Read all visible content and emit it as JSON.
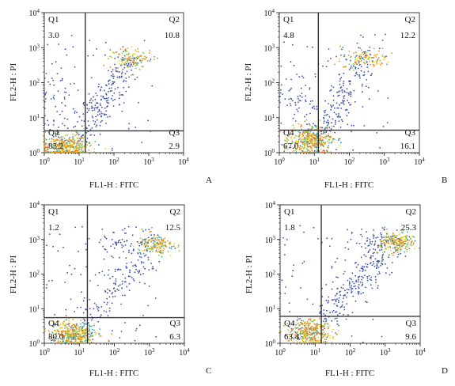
{
  "chart_data": [
    {
      "type": "scatter",
      "panel": "A",
      "xlabel": "FL1-H : FITC",
      "ylabel": "FL2-H : PI",
      "xscale": "log",
      "yscale": "log",
      "xlim": [
        1,
        10000
      ],
      "ylim": [
        1,
        10000
      ],
      "x_ticks": [
        "10^0",
        "10^1",
        "10^2",
        "10^3",
        "10^4"
      ],
      "y_ticks": [
        "10^0",
        "10^1",
        "10^2",
        "10^3",
        "10^4"
      ],
      "gate": {
        "x": 15,
        "y": 4.2
      },
      "quadrants": [
        {
          "name": "Q1",
          "value": "3.0"
        },
        {
          "name": "Q2",
          "value": "10.8"
        },
        {
          "name": "Q3",
          "value": "2.9"
        },
        {
          "name": "Q4",
          "value": "83.2"
        }
      ],
      "clusters": [
        {
          "cx": 4,
          "cy": 1.5,
          "sx": 0.35,
          "sy": 0.18,
          "n": 380
        },
        {
          "cx": 320,
          "cy": 480,
          "sx": 0.32,
          "sy": 0.16,
          "n": 130
        },
        {
          "cx": 2,
          "cy": 30,
          "sx": 0.3,
          "sy": 0.45,
          "n": 40
        }
      ],
      "trail": {
        "from": [
          10,
          3
        ],
        "to": [
          300,
          450
        ],
        "n": 200
      },
      "grid": false
    },
    {
      "type": "scatter",
      "panel": "B",
      "xlabel": "FL1-H : FITC",
      "ylabel": "FL2-H : PI",
      "xscale": "log",
      "yscale": "log",
      "xlim": [
        1,
        10000
      ],
      "ylim": [
        1,
        10000
      ],
      "x_ticks": [
        "10^0",
        "10^1",
        "10^2",
        "10^3",
        "10^4"
      ],
      "y_ticks": [
        "10^0",
        "10^1",
        "10^2",
        "10^3",
        "10^4"
      ],
      "gate": {
        "x": 13,
        "y": 4.4
      },
      "quadrants": [
        {
          "name": "Q1",
          "value": "4.8"
        },
        {
          "name": "Q2",
          "value": "12.2"
        },
        {
          "name": "Q3",
          "value": "16.1"
        },
        {
          "name": "Q4",
          "value": "67.0"
        }
      ],
      "clusters": [
        {
          "cx": 8,
          "cy": 2.2,
          "sx": 0.3,
          "sy": 0.2,
          "n": 380
        },
        {
          "cx": 300,
          "cy": 500,
          "sx": 0.35,
          "sy": 0.16,
          "n": 120
        },
        {
          "cx": 3,
          "cy": 40,
          "sx": 0.3,
          "sy": 0.4,
          "n": 50
        }
      ],
      "trail": {
        "from": [
          12,
          3
        ],
        "to": [
          300,
          450
        ],
        "n": 180
      },
      "grid": false
    },
    {
      "type": "scatter",
      "panel": "C",
      "xlabel": "FL1-H : FITC",
      "ylabel": "FL2-H : PI",
      "xscale": "log",
      "yscale": "log",
      "xlim": [
        1,
        10000
      ],
      "ylim": [
        1,
        10000
      ],
      "x_ticks": [
        "10^0",
        "10^1",
        "10^2",
        "10^3",
        "10^4"
      ],
      "y_ticks": [
        "10^0",
        "10^1",
        "10^2",
        "10^3",
        "10^4"
      ],
      "gate": {
        "x": 17,
        "y": 5.5
      },
      "quadrants": [
        {
          "name": "Q1",
          "value": "1.2"
        },
        {
          "name": "Q2",
          "value": "12.5"
        },
        {
          "name": "Q3",
          "value": "6.3"
        },
        {
          "name": "Q4",
          "value": "80.0"
        }
      ],
      "clusters": [
        {
          "cx": 7,
          "cy": 1.8,
          "sx": 0.3,
          "sy": 0.18,
          "n": 400
        },
        {
          "cx": 1500,
          "cy": 700,
          "sx": 0.25,
          "sy": 0.15,
          "n": 160
        },
        {
          "cx": 200,
          "cy": 800,
          "sx": 0.4,
          "sy": 0.2,
          "n": 60
        }
      ],
      "trail": {
        "from": [
          12,
          4
        ],
        "to": [
          1200,
          500
        ],
        "n": 150
      },
      "grid": false
    },
    {
      "type": "scatter",
      "panel": "D",
      "xlabel": "FL1-H : FITC",
      "ylabel": "FL2-H : PI",
      "xscale": "log",
      "yscale": "log",
      "xlim": [
        1,
        10000
      ],
      "ylim": [
        1,
        10000
      ],
      "x_ticks": [
        "10^0",
        "10^1",
        "10^2",
        "10^3",
        "10^4"
      ],
      "y_ticks": [
        "10^0",
        "10^1",
        "10^2",
        "10^3",
        "10^4"
      ],
      "gate": {
        "x": 15,
        "y": 6
      },
      "quadrants": [
        {
          "name": "Q1",
          "value": "1.8"
        },
        {
          "name": "Q2",
          "value": "25.3"
        },
        {
          "name": "Q3",
          "value": "9.6"
        },
        {
          "name": "Q4",
          "value": "63.4"
        }
      ],
      "clusters": [
        {
          "cx": 7,
          "cy": 2,
          "sx": 0.3,
          "sy": 0.2,
          "n": 360
        },
        {
          "cx": 2000,
          "cy": 800,
          "sx": 0.25,
          "sy": 0.15,
          "n": 220
        },
        {
          "cx": 600,
          "cy": 900,
          "sx": 0.35,
          "sy": 0.18,
          "n": 60
        }
      ],
      "trail": {
        "from": [
          15,
          5
        ],
        "to": [
          1500,
          600
        ],
        "n": 220
      },
      "grid": false
    }
  ],
  "colors": {
    "axis": "#111111",
    "gate": "#333333",
    "density": [
      "#3a4fa8",
      "#2f7fc4",
      "#2fb3a0",
      "#7ccf3a",
      "#f2d21b",
      "#f08a1c"
    ]
  }
}
